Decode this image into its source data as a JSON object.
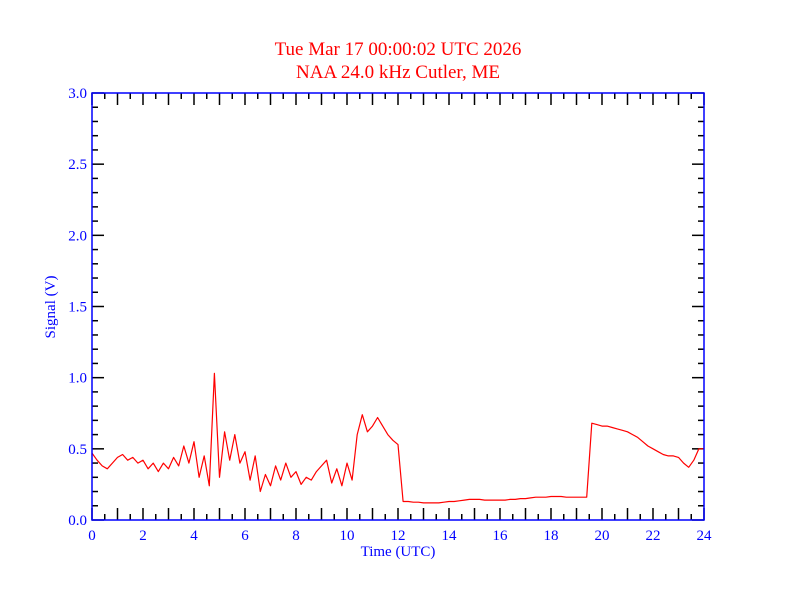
{
  "chart_data": {
    "type": "line",
    "title": "Tue Mar 17 00:00:02 UTC 2026",
    "subtitle": "NAA 24.0 kHz Cutler, ME",
    "xlabel": "Time (UTC)",
    "ylabel": "Signal (V)",
    "xlim": [
      0,
      24
    ],
    "ylim": [
      0,
      3.0
    ],
    "x_ticks": [
      0,
      2,
      4,
      6,
      8,
      10,
      12,
      14,
      16,
      18,
      20,
      22,
      24
    ],
    "x_tick_labels": [
      "0",
      "2",
      "4",
      "6",
      "8",
      "10",
      "12",
      "14",
      "16",
      "18",
      "20",
      "22",
      "24"
    ],
    "y_ticks": [
      0,
      0.5,
      1.0,
      1.5,
      2.0,
      2.5,
      3.0
    ],
    "y_tick_labels": [
      "0.0",
      "0.5",
      "1.0",
      "1.5",
      "2.0",
      "2.5",
      "3.0"
    ],
    "grid": false,
    "colors": {
      "line": "#ff0000",
      "axis": "#0000ff",
      "title": "#ff0000",
      "ticks": "#000000"
    },
    "series": [
      {
        "name": "Signal",
        "x_start": 0,
        "x_step": 0.2,
        "values": [
          0.47,
          0.42,
          0.38,
          0.36,
          0.4,
          0.44,
          0.46,
          0.42,
          0.44,
          0.4,
          0.42,
          0.36,
          0.4,
          0.34,
          0.4,
          0.36,
          0.44,
          0.38,
          0.52,
          0.4,
          0.55,
          0.3,
          0.45,
          0.24,
          1.03,
          0.3,
          0.62,
          0.42,
          0.6,
          0.4,
          0.48,
          0.28,
          0.45,
          0.2,
          0.32,
          0.24,
          0.38,
          0.28,
          0.4,
          0.3,
          0.34,
          0.25,
          0.3,
          0.28,
          0.34,
          0.38,
          0.42,
          0.26,
          0.36,
          0.24,
          0.4,
          0.28,
          0.6,
          0.74,
          0.62,
          0.66,
          0.72,
          0.66,
          0.6,
          0.56,
          0.53,
          0.13,
          0.13,
          0.125,
          0.125,
          0.12,
          0.12,
          0.12,
          0.12,
          0.125,
          0.13,
          0.13,
          0.135,
          0.14,
          0.145,
          0.145,
          0.145,
          0.14,
          0.14,
          0.14,
          0.14,
          0.14,
          0.145,
          0.145,
          0.15,
          0.15,
          0.155,
          0.16,
          0.16,
          0.16,
          0.165,
          0.165,
          0.165,
          0.16,
          0.16,
          0.16,
          0.16,
          0.16,
          0.68,
          0.67,
          0.66,
          0.66,
          0.65,
          0.64,
          0.63,
          0.62,
          0.6,
          0.58,
          0.55,
          0.52,
          0.5,
          0.48,
          0.46,
          0.45,
          0.45,
          0.44,
          0.4,
          0.37,
          0.42,
          0.5,
          0.5
        ]
      }
    ]
  }
}
